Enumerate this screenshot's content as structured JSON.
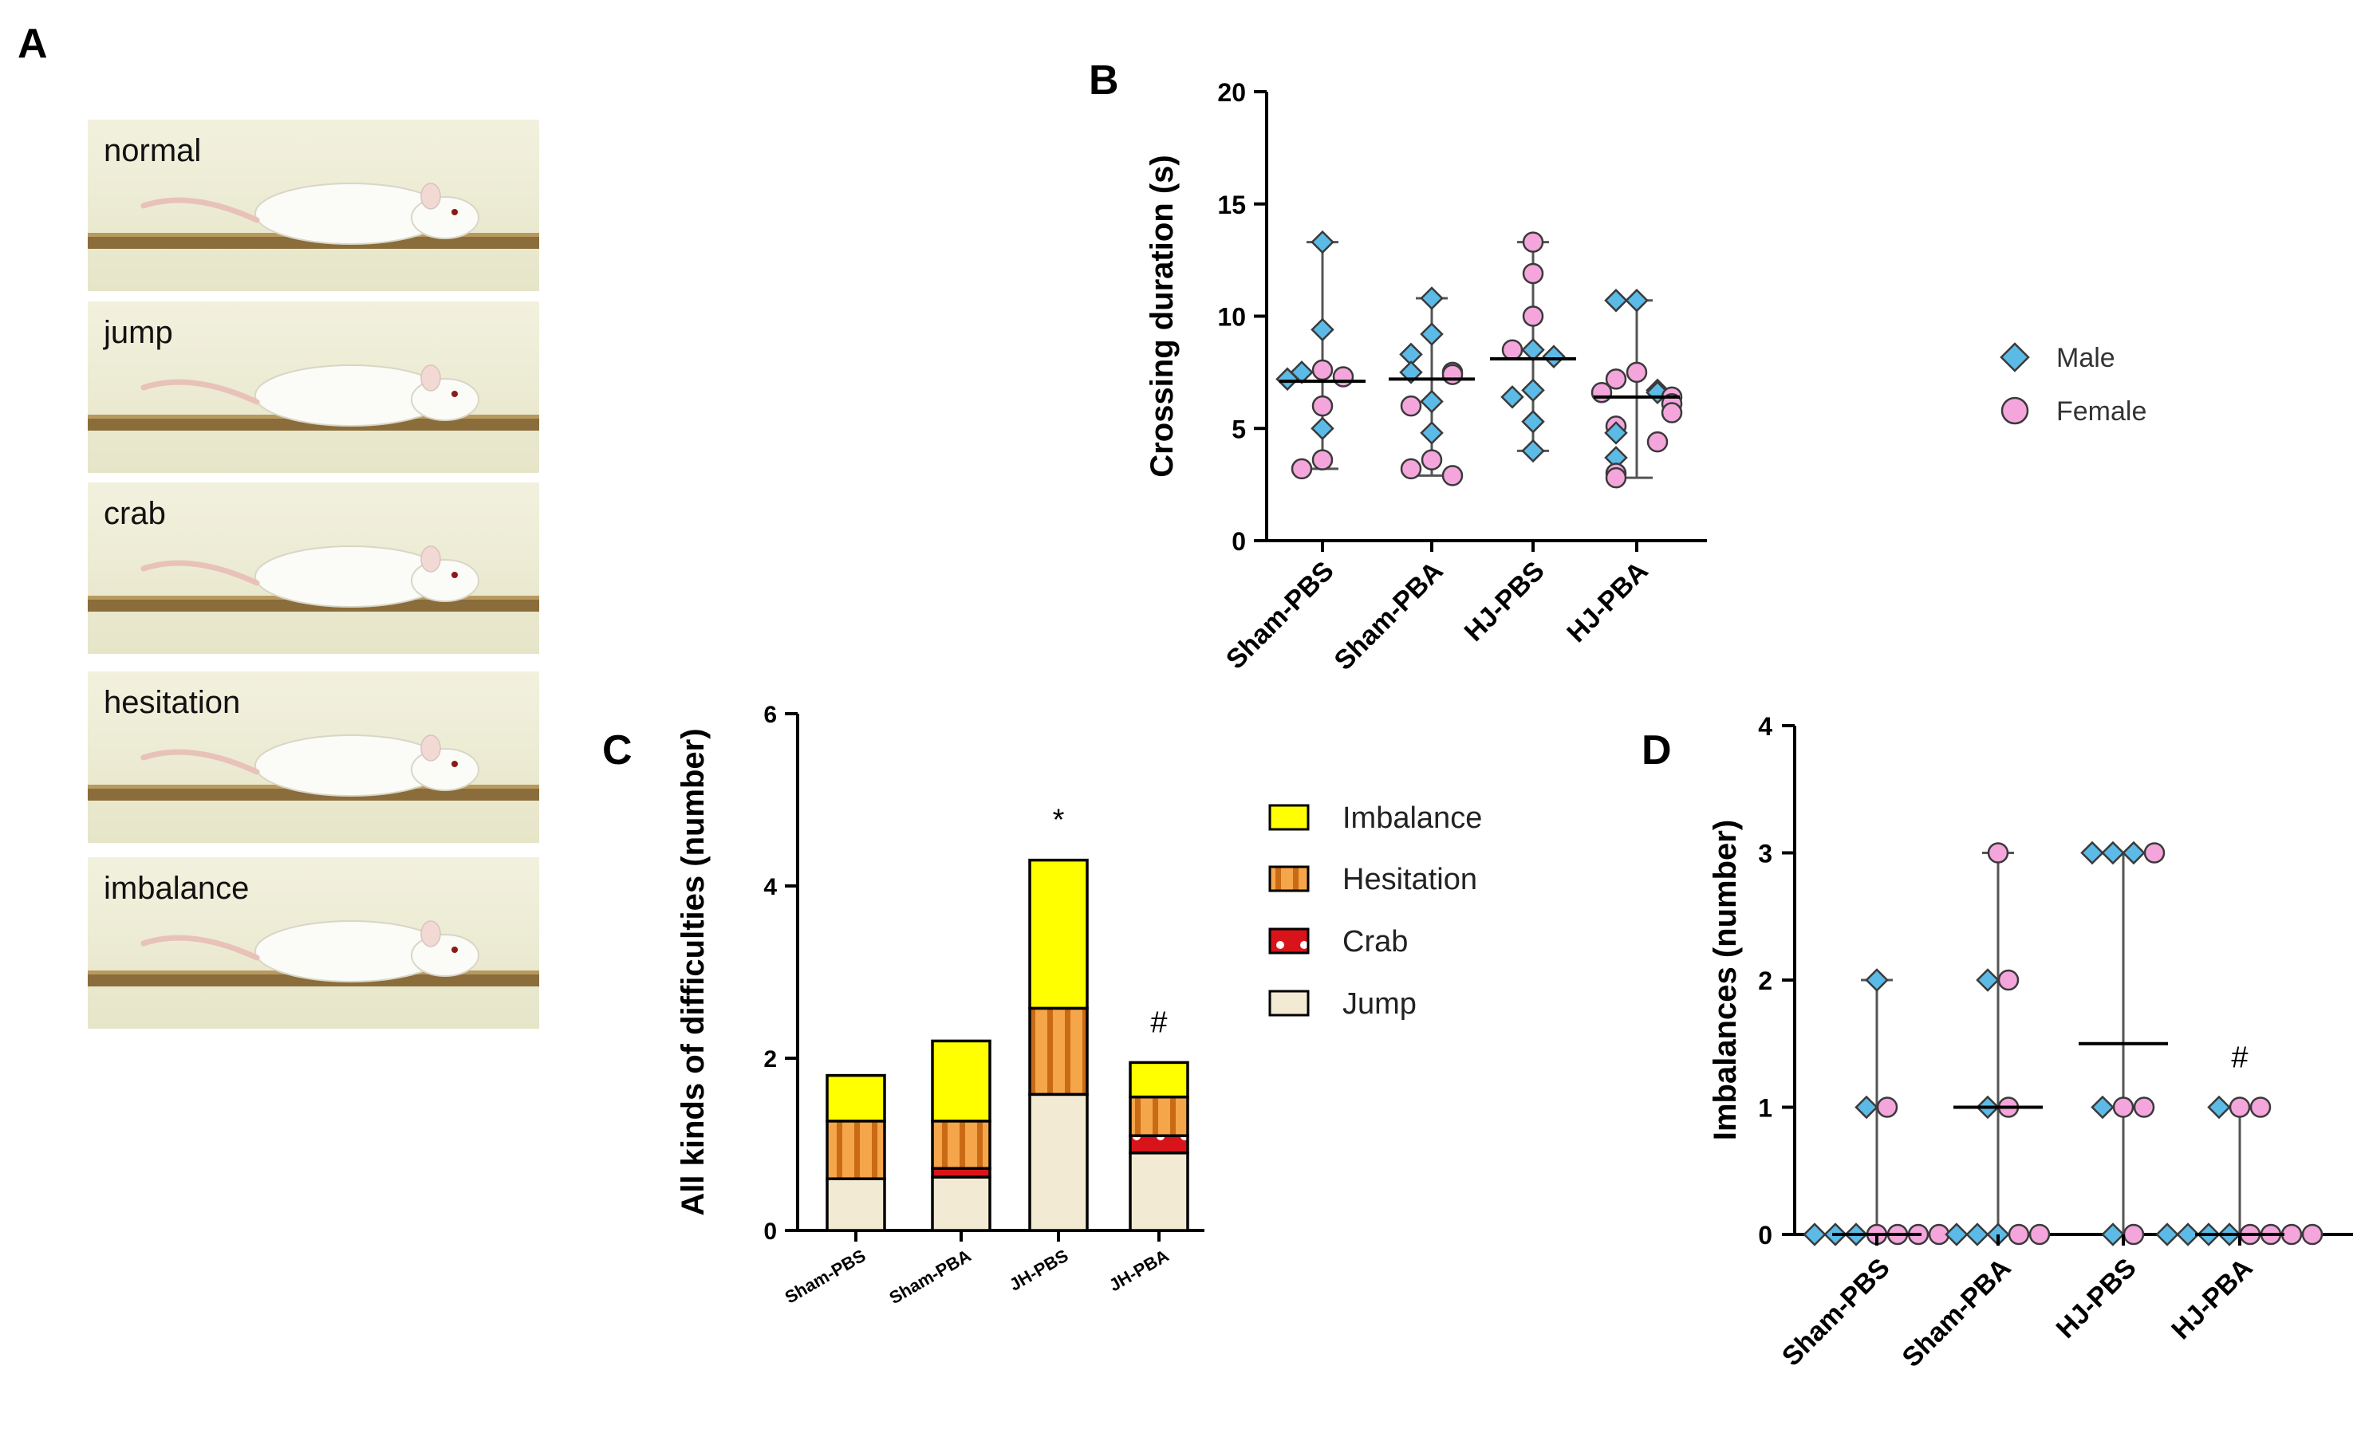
{
  "figure": {
    "panel_labels": {
      "a": "A",
      "b": "B",
      "c": "C",
      "d": "D"
    },
    "photos": [
      {
        "label": "normal"
      },
      {
        "label": "jump"
      },
      {
        "label": "crab"
      },
      {
        "label": "hesitation"
      },
      {
        "label": "imbalance"
      }
    ],
    "colors": {
      "male": "#5bbbe6",
      "female": "#f4a6dc",
      "imbalance": "#ffff00",
      "hesitation": "#f5a54a",
      "crab": "#d8141a",
      "jump": "#f2ead2"
    }
  },
  "chart_data": [
    {
      "id": "B",
      "type": "scatter",
      "title": "",
      "ylabel": "Crossing duration (s)",
      "ylim": [
        0,
        20
      ],
      "yticks": [
        "0",
        "5",
        "10",
        "15",
        "20"
      ],
      "categories": [
        "Sham-PBS",
        "Sham-PBA",
        "HJ-PBS",
        "HJ-PBA"
      ],
      "legend": [
        "Male",
        "Female"
      ],
      "groups": [
        {
          "median": 7.1,
          "min": 3.2,
          "max": 13.3,
          "male": [
            13.3,
            9.4,
            7.5,
            7.2,
            5.0
          ],
          "female": [
            7.6,
            7.3,
            6.0,
            3.6,
            3.2
          ]
        },
        {
          "median": 7.2,
          "min": 2.9,
          "max": 10.8,
          "male": [
            10.8,
            9.2,
            8.3,
            7.5,
            6.2,
            4.8
          ],
          "female": [
            7.5,
            7.4,
            6.0,
            3.6,
            3.2,
            2.9
          ]
        },
        {
          "median": 8.1,
          "min": 4.0,
          "max": 13.3,
          "male": [
            8.5,
            8.2,
            6.7,
            6.4,
            5.3,
            4.0
          ],
          "female": [
            13.3,
            11.9,
            10.0,
            8.5
          ]
        },
        {
          "median": 6.4,
          "min": 2.8,
          "max": 10.7,
          "male": [
            10.7,
            10.7,
            6.7,
            6.6,
            4.8,
            3.7
          ],
          "female": [
            7.5,
            7.2,
            6.6,
            6.4,
            6.1,
            5.7,
            5.1,
            4.4,
            3.0,
            2.8
          ]
        }
      ]
    },
    {
      "id": "C",
      "type": "bar",
      "stacked": true,
      "ylabel": "All kinds of difficulties (number)",
      "ylim": [
        0,
        6
      ],
      "yticks": [
        "0",
        "2",
        "4",
        "6"
      ],
      "categories": [
        "Sham-PBS",
        "Sham-PBA",
        "JH-PBS",
        "JH-PBA"
      ],
      "series": [
        {
          "name": "Jump",
          "values": [
            0.6,
            0.62,
            1.58,
            0.9
          ]
        },
        {
          "name": "Crab",
          "values": [
            0.0,
            0.1,
            0.0,
            0.2
          ]
        },
        {
          "name": "Hesitation",
          "values": [
            0.67,
            0.55,
            1.0,
            0.45
          ]
        },
        {
          "name": "Imbalance",
          "values": [
            0.53,
            0.93,
            1.72,
            0.4
          ]
        }
      ],
      "legend_order": [
        "Imbalance",
        "Hesitation",
        "Crab",
        "Jump"
      ],
      "annotations": [
        "",
        "",
        "*",
        "#"
      ]
    },
    {
      "id": "D",
      "type": "scatter",
      "ylabel": "Imbalances (number)",
      "ylim": [
        0,
        4
      ],
      "yticks": [
        "0",
        "1",
        "2",
        "3",
        "4"
      ],
      "categories": [
        "Sham-PBS",
        "Sham-PBA",
        "HJ-PBS",
        "HJ-PBA"
      ],
      "annotations": [
        "",
        "",
        "",
        "#"
      ],
      "groups": [
        {
          "median": 0,
          "min": 0,
          "max": 2,
          "male": [
            2,
            1,
            0,
            0,
            0
          ],
          "female": [
            1,
            0,
            0,
            0,
            0
          ]
        },
        {
          "median": 1,
          "min": 0,
          "max": 3,
          "male": [
            2,
            1,
            0,
            0,
            0
          ],
          "female": [
            3,
            2,
            1,
            0,
            0
          ]
        },
        {
          "median": 1.5,
          "min": 0,
          "max": 3,
          "male": [
            3,
            3,
            3,
            1,
            0
          ],
          "female": [
            3,
            1,
            1,
            0
          ]
        },
        {
          "median": 0,
          "min": 0,
          "max": 1,
          "male": [
            1,
            0,
            0,
            0,
            0
          ],
          "female": [
            1,
            1,
            0,
            0,
            0,
            0
          ]
        }
      ]
    }
  ]
}
